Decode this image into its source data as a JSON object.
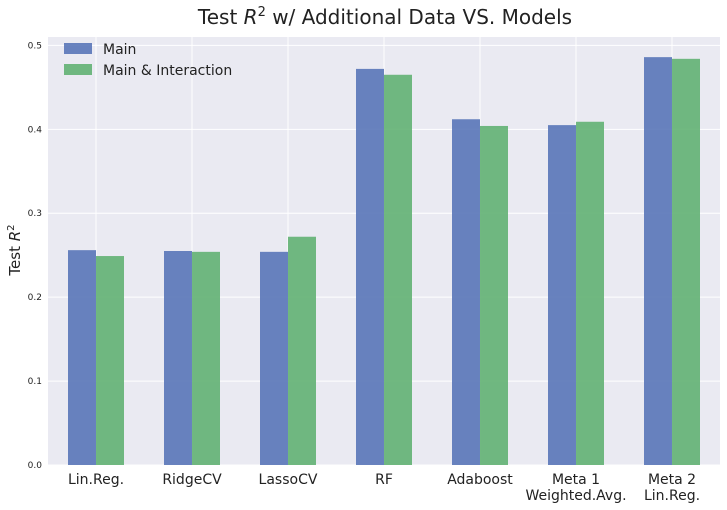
{
  "chart_data": {
    "type": "bar",
    "title_prefix": "Test ",
    "title_var": "R",
    "title_exp": "2",
    "title_suffix": " w/ Additional Data VS. Models",
    "ylabel_prefix": "Test ",
    "ylabel_var": "R",
    "ylabel_exp": "2",
    "xlabel": "",
    "categories": [
      [
        "Lin.Reg."
      ],
      [
        "RidgeCV"
      ],
      [
        "LassoCV"
      ],
      [
        "RF"
      ],
      [
        "Adaboost"
      ],
      [
        "Meta 1",
        "Weighted.Avg."
      ],
      [
        "Meta 2",
        "Lin.Reg."
      ]
    ],
    "series": [
      {
        "name": "Main",
        "color": "#5975b8",
        "values": [
          0.256,
          0.255,
          0.254,
          0.472,
          0.412,
          0.405,
          0.486
        ]
      },
      {
        "name": "Main & Interaction",
        "color": "#62b173",
        "values": [
          0.249,
          0.254,
          0.272,
          0.465,
          0.404,
          0.409,
          0.484
        ]
      }
    ],
    "ylim": [
      0,
      0.51
    ],
    "yticks": [
      "0.0",
      "0.1",
      "0.2",
      "0.3",
      "0.4",
      "0.5"
    ],
    "grid": true,
    "legend_position": "top-left",
    "background": "#eaeaf2"
  }
}
